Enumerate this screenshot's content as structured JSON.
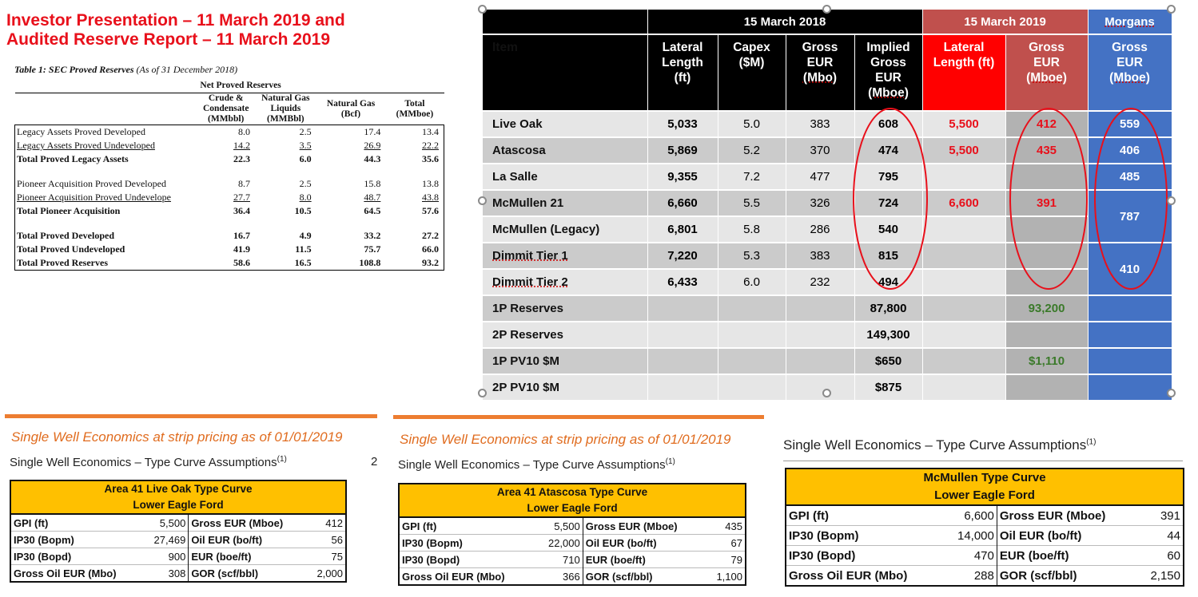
{
  "title": "Investor Presentation – 11 March 2019 and Audited Reserve Report – 11 March 2019",
  "sec_table": {
    "caption_bold": "Table 1: SEC Proved Reserves",
    "caption_rest": "(As of 31 December 2018)",
    "group_header": "Net Proved Reserves",
    "columns": [
      "Crude & Condensate (MMbbl)",
      "Natural Gas Liquids (MMBbl)",
      "Natural Gas (Bcf)",
      "Total (MMboe)"
    ],
    "rows": [
      {
        "label": "Legacy Assets Proved Developed",
        "v": [
          "8.0",
          "2.5",
          "17.4",
          "13.4"
        ]
      },
      {
        "label": "Legacy Assets Proved Undeveloped",
        "v": [
          "14.2",
          "3.5",
          "26.9",
          "22.2"
        ]
      },
      {
        "label": "Total Proved Legacy Assets",
        "v": [
          "22.3",
          "6.0",
          "44.3",
          "35.6"
        ]
      },
      {
        "label": "Pioneer Acquisition Proved Developed",
        "v": [
          "8.7",
          "2.5",
          "15.8",
          "13.8"
        ]
      },
      {
        "label": "Pioneer Acquisition Proved Undevelope",
        "v": [
          "27.7",
          "8.0",
          "48.7",
          "43.8"
        ]
      },
      {
        "label": "Total Pioneer Acquisition",
        "v": [
          "36.4",
          "10.5",
          "64.5",
          "57.6"
        ]
      },
      {
        "label": "Total Proved Developed",
        "v": [
          "16.7",
          "4.9",
          "33.2",
          "27.2"
        ]
      },
      {
        "label": "Total Proved Undeveloped",
        "v": [
          "41.9",
          "11.5",
          "75.7",
          "66.0"
        ]
      },
      {
        "label": "Total Proved Reserves",
        "v": [
          "58.6",
          "16.5",
          "108.8",
          "93.2"
        ]
      }
    ]
  },
  "compare": {
    "group1": "15 March 2018",
    "group2": "15 March 2019",
    "group3": "Morgans",
    "headers": {
      "item": "Item",
      "lateral": [
        "Lateral",
        "Length",
        "(ft)"
      ],
      "capex": [
        "Capex",
        "($M)"
      ],
      "gross_eur": [
        "Gross",
        "EUR",
        "(Mbo)"
      ],
      "implied": [
        "Implied",
        "Gross",
        "EUR",
        "(Mboe)"
      ],
      "lateral19": [
        "Lateral",
        "Length (ft)"
      ],
      "gross19": [
        "Gross",
        "EUR",
        "(Mboe)"
      ],
      "morgans": [
        "Gross",
        "EUR",
        "(Mboe)"
      ]
    },
    "rows": [
      {
        "item": "Live Oak",
        "lateral": "5,033",
        "capex": "5.0",
        "gross": "383",
        "implied": "608",
        "lateral19": "5,500",
        "gross19": "412",
        "morgans": "559"
      },
      {
        "item": "Atascosa",
        "lateral": "5,869",
        "capex": "5.2",
        "gross": "370",
        "implied": "474",
        "lateral19": "5,500",
        "gross19": "435",
        "morgans": "406"
      },
      {
        "item": "La Salle",
        "lateral": "9,355",
        "capex": "7.2",
        "gross": "477",
        "implied": "795",
        "lateral19": "",
        "gross19": "",
        "morgans": "485"
      },
      {
        "item": "McMullen 21",
        "lateral": "6,660",
        "capex": "5.5",
        "gross": "326",
        "implied": "724",
        "lateral19": "6,600",
        "gross19": "391",
        "morgans": "787"
      },
      {
        "item": "McMullen (Legacy)",
        "lateral": "6,801",
        "capex": "5.8",
        "gross": "286",
        "implied": "540",
        "lateral19": "",
        "gross19": "",
        "morgans": ""
      },
      {
        "item": "Dimmit Tier 1",
        "lateral": "7,220",
        "capex": "5.3",
        "gross": "383",
        "implied": "815",
        "lateral19": "",
        "gross19": "",
        "morgans": "410"
      },
      {
        "item": "Dimmit Tier 2",
        "lateral": "6,433",
        "capex": "6.0",
        "gross": "232",
        "implied": "494",
        "lateral19": "",
        "gross19": "",
        "morgans": ""
      },
      {
        "item": "1P Reserves",
        "lateral": "",
        "capex": "",
        "gross": "",
        "implied": "87,800",
        "lateral19": "",
        "gross19": "93,200",
        "morgans": ""
      },
      {
        "item": "2P Reserves",
        "lateral": "",
        "capex": "",
        "gross": "",
        "implied": "149,300",
        "lateral19": "",
        "gross19": "",
        "morgans": ""
      },
      {
        "item": "1P PV10 $M",
        "lateral": "",
        "capex": "",
        "gross": "",
        "implied": "$650",
        "lateral19": "",
        "gross19": "$1,110",
        "morgans": ""
      },
      {
        "item": "2P PV10 $M",
        "lateral": "",
        "capex": "",
        "gross": "",
        "implied": "$875",
        "lateral19": "",
        "gross19": "",
        "morgans": ""
      }
    ]
  },
  "econ_panels": [
    {
      "subtitle": "Single Well Economics at strip pricing as of 01/01/2019",
      "heading": "Single Well Economics – Type Curve Assumptions",
      "heading_sup": "(1)",
      "side_mark": "2",
      "title1": "Area 41 Live Oak Type Curve",
      "title2": "Lower Eagle Ford",
      "rows": [
        {
          "k1": "GPI (ft)",
          "v1": "5,500",
          "k2": "Gross EUR  (Mboe)",
          "v2": "412"
        },
        {
          "k1": "IP30 (Bopm)",
          "v1": "27,469",
          "k2": "Oil EUR (bo/ft)",
          "v2": "56"
        },
        {
          "k1": "IP30 (Bopd)",
          "v1": "900",
          "k2": "EUR (boe/ft)",
          "v2": "75"
        },
        {
          "k1": "Gross Oil EUR (Mbo)",
          "v1": "308",
          "k2": "GOR (scf/bbl)",
          "v2": "2,000"
        }
      ]
    },
    {
      "subtitle": "Single Well Economics at strip pricing as of 01/01/2019",
      "heading": "Single Well Economics – Type Curve Assumptions",
      "heading_sup": "(1)",
      "title1": "Area 41 Atascosa Type Curve",
      "title2": "Lower Eagle Ford",
      "rows": [
        {
          "k1": "GPI (ft)",
          "v1": "5,500",
          "k2": "Gross EUR  (Mboe)",
          "v2": "435"
        },
        {
          "k1": "IP30 (Bopm)",
          "v1": "22,000",
          "k2": "Oil EUR (bo/ft)",
          "v2": "67"
        },
        {
          "k1": "IP30 (Bopd)",
          "v1": "710",
          "k2": "EUR (boe/ft)",
          "v2": "79"
        },
        {
          "k1": "Gross Oil EUR (Mbo)",
          "v1": "366",
          "k2": "GOR (scf/bbl)",
          "v2": "1,100"
        }
      ]
    },
    {
      "heading": "Single Well Economics – Type Curve Assumptions",
      "heading_sup": "(1)",
      "title1": "McMullen Type Curve",
      "title2": "Lower Eagle Ford",
      "rows": [
        {
          "k1": "GPI (ft)",
          "v1": "6,600",
          "k2": "Gross EUR  (Mboe)",
          "v2": "391"
        },
        {
          "k1": "IP30 (Bopm)",
          "v1": "14,000",
          "k2": "Oil EUR (bo/ft)",
          "v2": "44"
        },
        {
          "k1": "IP30 (Bopd)",
          "v1": "470",
          "k2": "EUR (boe/ft)",
          "v2": "60"
        },
        {
          "k1": "Gross Oil EUR (Mbo)",
          "v1": "288",
          "k2": "GOR (scf/bbl)",
          "v2": "2,150"
        }
      ]
    }
  ],
  "colors": {
    "title_red": "#e8101b",
    "header_black": "#000000",
    "header_red": "#ff0000",
    "header_darkred": "#c0504d",
    "header_blue": "#4472c4",
    "ellipse_red": "#e8101b",
    "green_value": "#3b7a2a",
    "type_curve_yellow": "#ffc000",
    "economics_orange": "#ed7d31"
  }
}
